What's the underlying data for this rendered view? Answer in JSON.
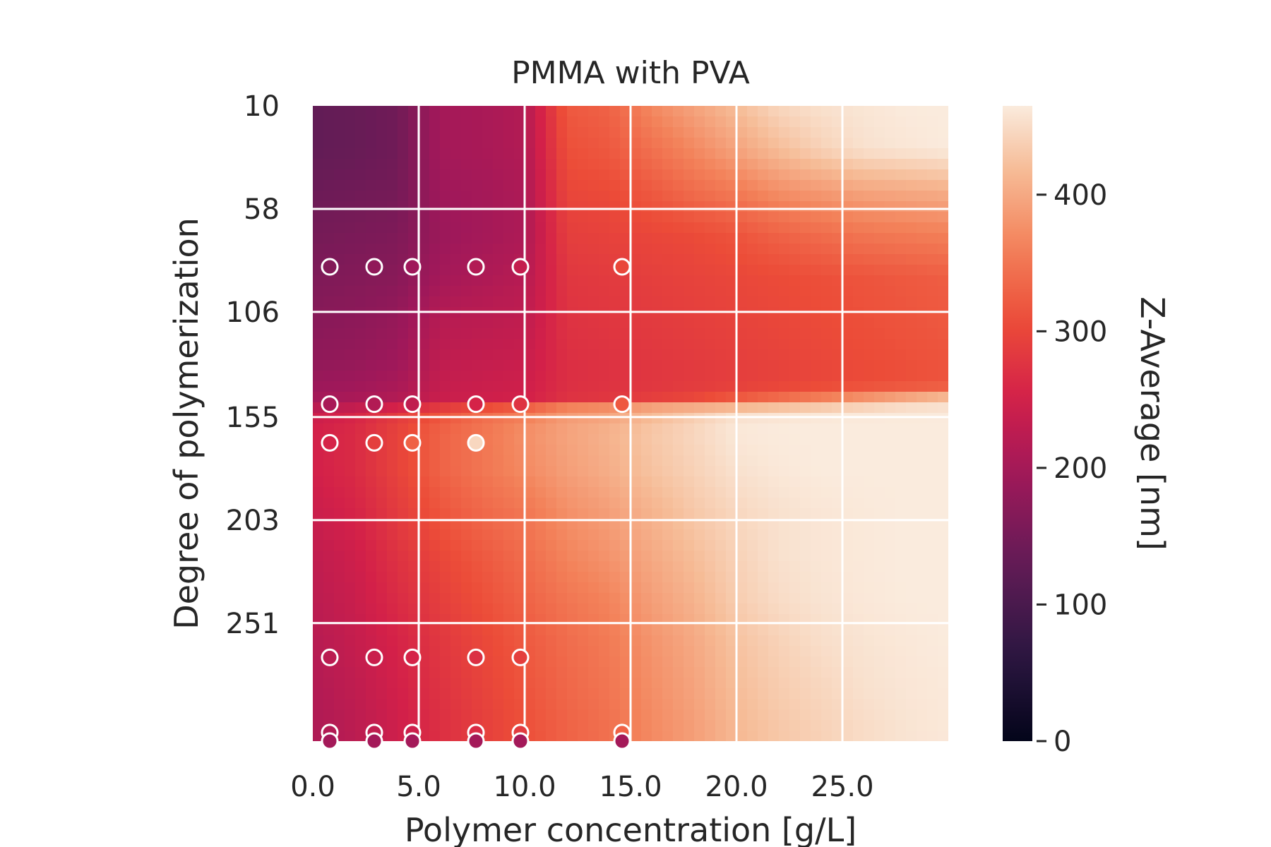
{
  "chart_data": {
    "type": "heatmap",
    "title": "PMMA with PVA",
    "xlabel": "Polymer concentration [g/L]",
    "ylabel": "Degree of polymerization",
    "xlim": [
      0,
      30
    ],
    "ylim": [
      10,
      306
    ],
    "y_inverted": true,
    "x_ticks": [
      {
        "value": 0,
        "label": "0.0"
      },
      {
        "value": 5,
        "label": "5.0"
      },
      {
        "value": 10,
        "label": "10.0"
      },
      {
        "value": 15,
        "label": "15.0"
      },
      {
        "value": 20,
        "label": "20.0"
      },
      {
        "value": 25,
        "label": "25.0"
      }
    ],
    "y_ticks": [
      {
        "value": 10,
        "label": "10"
      },
      {
        "value": 58,
        "label": "58"
      },
      {
        "value": 106,
        "label": "106"
      },
      {
        "value": 155,
        "label": "155"
      },
      {
        "value": 203,
        "label": "203"
      },
      {
        "value": 251,
        "label": "251"
      }
    ],
    "grid": true,
    "colorbar": {
      "label": "Z-Average [nm]",
      "range": [
        0,
        465
      ],
      "ticks": [
        {
          "value": 0,
          "label": "0"
        },
        {
          "value": 100,
          "label": "100"
        },
        {
          "value": 200,
          "label": "200"
        },
        {
          "value": 300,
          "label": "300"
        },
        {
          "value": 400,
          "label": "400"
        }
      ],
      "colormap": "rocket"
    },
    "grid_x": [
      0,
      2,
      4,
      6,
      8,
      10,
      12,
      14,
      16,
      18,
      20,
      22,
      24,
      26,
      28,
      30
    ],
    "grid_y": [
      10,
      30,
      50,
      70,
      90,
      110,
      130,
      140,
      146,
      150,
      156,
      162,
      180,
      200,
      220,
      240,
      260,
      280,
      300,
      306
    ],
    "z": [
      [
        130,
        135,
        145,
        200,
        205,
        215,
        320,
        330,
        370,
        395,
        420,
        445,
        455,
        460,
        465,
        465
      ],
      [
        130,
        135,
        145,
        200,
        205,
        215,
        310,
        320,
        345,
        370,
        395,
        420,
        440,
        455,
        460,
        465
      ],
      [
        140,
        145,
        150,
        195,
        200,
        210,
        300,
        305,
        320,
        340,
        355,
        375,
        385,
        395,
        400,
        405
      ],
      [
        150,
        155,
        160,
        190,
        200,
        210,
        290,
        295,
        300,
        305,
        315,
        330,
        340,
        350,
        355,
        360
      ],
      [
        160,
        165,
        170,
        200,
        210,
        220,
        280,
        285,
        290,
        295,
        300,
        305,
        310,
        315,
        320,
        325
      ],
      [
        170,
        175,
        185,
        220,
        225,
        230,
        275,
        280,
        285,
        290,
        295,
        300,
        305,
        310,
        315,
        320
      ],
      [
        180,
        185,
        195,
        230,
        235,
        240,
        270,
        275,
        280,
        285,
        290,
        295,
        300,
        305,
        310,
        315
      ],
      [
        190,
        195,
        205,
        235,
        240,
        245,
        270,
        275,
        280,
        285,
        290,
        295,
        300,
        305,
        310,
        315
      ],
      [
        200,
        205,
        215,
        240,
        245,
        250,
        275,
        280,
        290,
        300,
        320,
        340,
        360,
        380,
        400,
        420
      ],
      [
        220,
        230,
        250,
        280,
        300,
        320,
        360,
        370,
        390,
        400,
        410,
        420,
        430,
        440,
        450,
        455
      ],
      [
        245,
        260,
        290,
        320,
        345,
        365,
        390,
        400,
        420,
        440,
        460,
        463,
        465,
        465,
        465,
        465
      ],
      [
        250,
        265,
        295,
        330,
        350,
        375,
        395,
        410,
        430,
        445,
        462,
        465,
        465,
        465,
        465,
        465
      ],
      [
        250,
        265,
        295,
        330,
        350,
        370,
        390,
        405,
        425,
        440,
        455,
        462,
        465,
        465,
        465,
        465
      ],
      [
        240,
        255,
        285,
        315,
        335,
        350,
        375,
        390,
        410,
        430,
        445,
        455,
        460,
        463,
        465,
        465
      ],
      [
        230,
        245,
        275,
        300,
        320,
        340,
        365,
        380,
        400,
        420,
        440,
        455,
        460,
        463,
        465,
        465
      ],
      [
        225,
        240,
        265,
        290,
        310,
        330,
        350,
        365,
        390,
        410,
        435,
        450,
        458,
        462,
        465,
        465
      ],
      [
        220,
        235,
        255,
        280,
        300,
        320,
        340,
        355,
        380,
        400,
        425,
        440,
        452,
        458,
        462,
        465
      ],
      [
        215,
        230,
        250,
        275,
        295,
        315,
        335,
        350,
        375,
        395,
        420,
        435,
        445,
        455,
        460,
        463
      ],
      [
        210,
        225,
        245,
        270,
        290,
        310,
        330,
        345,
        370,
        390,
        415,
        430,
        440,
        450,
        458,
        462
      ],
      [
        210,
        225,
        245,
        270,
        290,
        310,
        330,
        345,
        370,
        390,
        415,
        430,
        440,
        450,
        458,
        462
      ]
    ],
    "points": [
      {
        "x": 0.8,
        "y": 85,
        "z": 165
      },
      {
        "x": 2.9,
        "y": 85,
        "z": 180
      },
      {
        "x": 4.7,
        "y": 85,
        "z": 195
      },
      {
        "x": 7.7,
        "y": 85,
        "z": 215
      },
      {
        "x": 9.8,
        "y": 85,
        "z": 235
      },
      {
        "x": 14.6,
        "y": 85,
        "z": 300
      },
      {
        "x": 0.8,
        "y": 149,
        "z": 205
      },
      {
        "x": 2.9,
        "y": 149,
        "z": 215
      },
      {
        "x": 4.7,
        "y": 149,
        "z": 230
      },
      {
        "x": 7.7,
        "y": 149,
        "z": 255
      },
      {
        "x": 9.8,
        "y": 149,
        "z": 275
      },
      {
        "x": 14.6,
        "y": 149,
        "z": 320
      },
      {
        "x": 0.8,
        "y": 167,
        "z": 255
      },
      {
        "x": 2.9,
        "y": 167,
        "z": 290
      },
      {
        "x": 4.7,
        "y": 167,
        "z": 330
      },
      {
        "x": 7.7,
        "y": 167,
        "z": 445
      },
      {
        "x": 0.8,
        "y": 267,
        "z": 225
      },
      {
        "x": 2.9,
        "y": 267,
        "z": 240
      },
      {
        "x": 4.7,
        "y": 267,
        "z": 255
      },
      {
        "x": 7.7,
        "y": 267,
        "z": 270
      },
      {
        "x": 9.8,
        "y": 267,
        "z": 290
      },
      {
        "x": 0.8,
        "y": 302,
        "z": 215
      },
      {
        "x": 2.9,
        "y": 302,
        "z": 230
      },
      {
        "x": 4.7,
        "y": 302,
        "z": 245
      },
      {
        "x": 7.7,
        "y": 302,
        "z": 265
      },
      {
        "x": 9.8,
        "y": 302,
        "z": 285
      },
      {
        "x": 14.6,
        "y": 302,
        "z": 330
      },
      {
        "x": 0.8,
        "y": 306,
        "z": 200
      },
      {
        "x": 2.9,
        "y": 306,
        "z": 200
      },
      {
        "x": 4.7,
        "y": 306,
        "z": 200
      },
      {
        "x": 7.7,
        "y": 306,
        "z": 200
      },
      {
        "x": 9.8,
        "y": 306,
        "z": 200
      },
      {
        "x": 14.6,
        "y": 306,
        "z": 200
      }
    ]
  }
}
